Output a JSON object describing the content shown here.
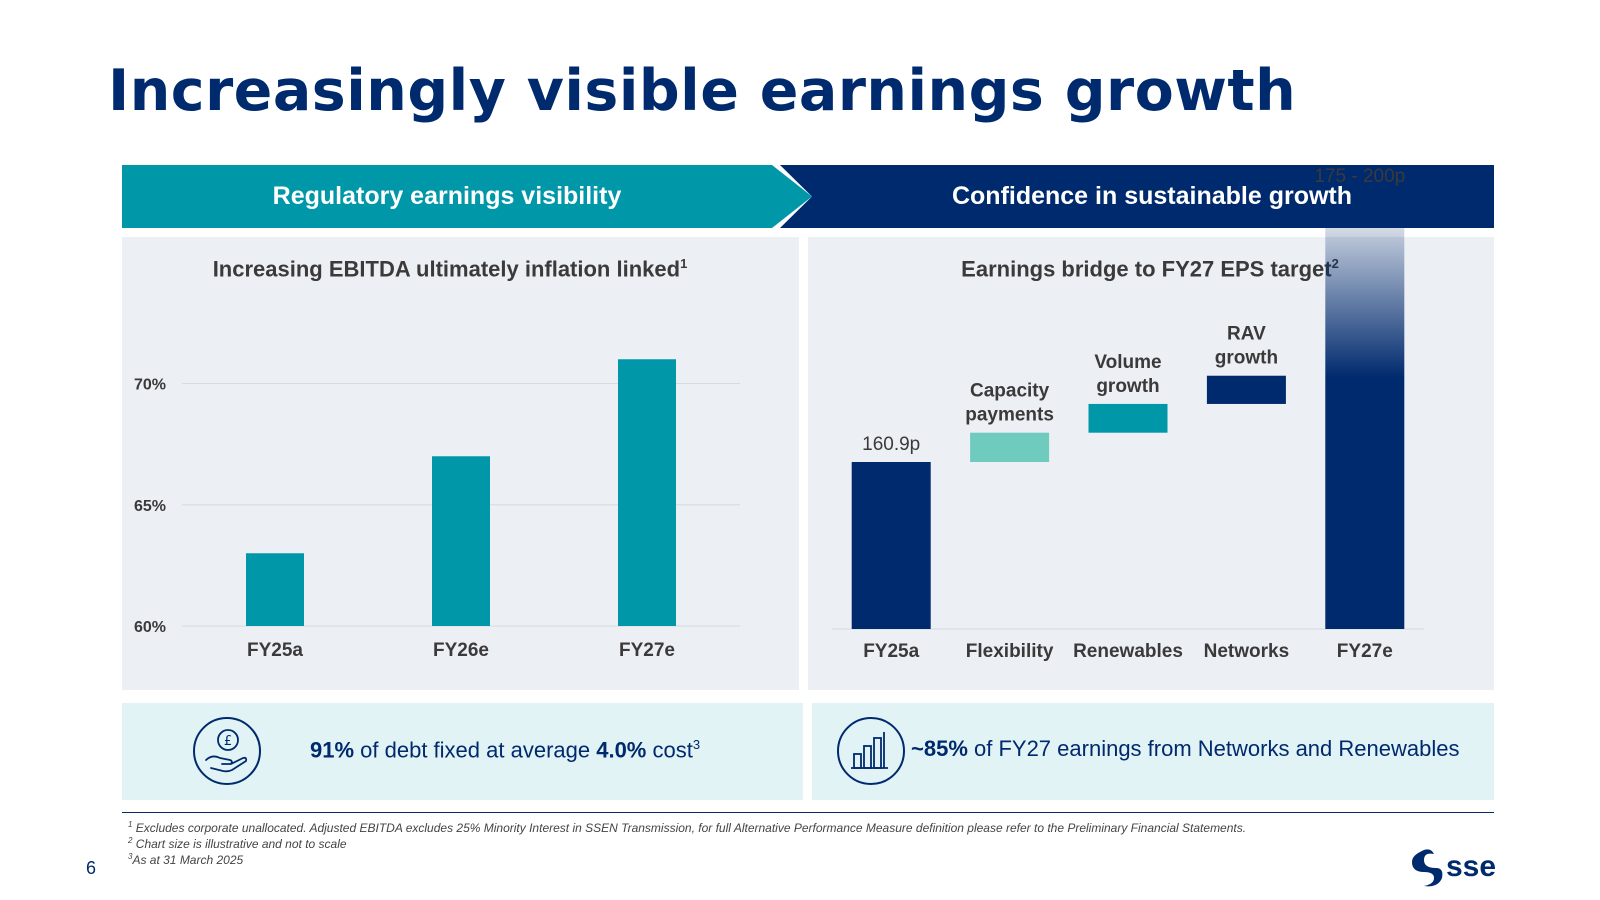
{
  "title": "Increasingly visible earnings growth",
  "banners": {
    "left": "Regulatory earnings visibility",
    "right": "Confidence in sustainable growth"
  },
  "colors": {
    "teal": "#0097a9",
    "navy": "#002a6e",
    "mint": "#6fcbbd",
    "panel": "#eceff4",
    "info_bg": "#e2f3f5"
  },
  "left_panel": {
    "title": "Increasing EBITDA ultimately inflation linked",
    "title_sup": "1"
  },
  "right_panel": {
    "title": "Earnings bridge to FY27 EPS target",
    "title_sup": "2"
  },
  "chart_data": [
    {
      "type": "bar",
      "categories": [
        "FY25a",
        "FY26e",
        "FY27e"
      ],
      "values": [
        63,
        67,
        71
      ],
      "ylim": [
        60,
        72
      ],
      "yticks": [
        60,
        65,
        70
      ],
      "ytick_labels": [
        "60%",
        "65%",
        "70%"
      ],
      "grid": true,
      "color": "#0097a9"
    },
    {
      "type": "waterfall",
      "categories": [
        "FY25a",
        "Flexibility",
        "Renewables",
        "Networks",
        "FY27e"
      ],
      "category_labels": [
        "FY25a",
        "Flexibility",
        "Renewables",
        "Networks",
        "FY27e"
      ],
      "steps": [
        {
          "kind": "total",
          "start": 0,
          "end": 160.9,
          "color": "#002a6e",
          "label": "160.9p"
        },
        {
          "kind": "increment",
          "start": 160.9,
          "end": 166.3,
          "color": "#6fcbbd",
          "label_lines": [
            "Capacity",
            "payments"
          ]
        },
        {
          "kind": "increment",
          "start": 166.3,
          "end": 171.6,
          "color": "#0097a9",
          "label_lines": [
            "Volume",
            "growth"
          ]
        },
        {
          "kind": "increment",
          "start": 171.6,
          "end": 176.8,
          "color": "#002a6e",
          "label_lines": [
            "RAV",
            "growth"
          ]
        },
        {
          "kind": "range",
          "start": 0,
          "end": 200,
          "range_low": 175,
          "range_high": 200,
          "color": "#002a6e",
          "label": "175 - 200p"
        }
      ],
      "note": "Chart size is illustrative and not to scale"
    }
  ],
  "info_boxes": {
    "left": {
      "icon": "pound-coin-hand-icon",
      "bold1": "91%",
      "text1": " of debt fixed at average ",
      "bold2": "4.0%",
      "text2": " cost",
      "sup": "3"
    },
    "right": {
      "icon": "bar-chart-icon",
      "bold1": "~85%",
      "text1": " of FY27 earnings from Networks and Renewables"
    }
  },
  "footnotes": [
    {
      "sup": "1",
      "text": " Excludes corporate unallocated. Adjusted EBITDA excludes 25% Minority Interest in SSEN Transmission, for full Alternative Performance Measure definition please refer to the Preliminary Financial Statements."
    },
    {
      "sup": "2",
      "text": " Chart size is illustrative and not to scale"
    },
    {
      "sup": "3",
      "text": "As at 31 March 2025"
    }
  ],
  "page_number": "6",
  "logo_text": "sse"
}
